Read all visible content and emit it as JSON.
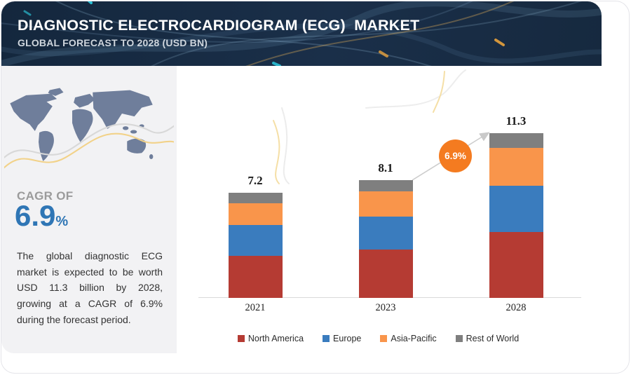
{
  "header": {
    "title": "DIAGNOSTIC ELECTROCARDIOGRAM (ECG)  MARKET",
    "subtitle": "GLOBAL FORECAST TO 2028 (USD BN)",
    "bg_color": "#16293f"
  },
  "sidebar": {
    "cagr_label": "CAGR OF",
    "cagr_value": "6.9",
    "cagr_percent_sign": "%",
    "cagr_color": "#2f76b5",
    "description": "The global diagnostic ECG market is expected to be worth USD 11.3 billion by 2028, growing at a CAGR of 6.9% during the forecast period.",
    "map_color": "#6f7e9b"
  },
  "chart_data": {
    "type": "bar",
    "stacked": true,
    "title": "",
    "xlabel": "",
    "ylabel": "",
    "unit": "USD BN",
    "grid": false,
    "legend_position": "bottom",
    "categories": [
      "2021",
      "2023",
      "2028"
    ],
    "series": [
      {
        "name": "North America",
        "color": "#b53b33",
        "values": [
          2.9,
          3.3,
          4.5
        ]
      },
      {
        "name": "Europe",
        "color": "#3a7cbe",
        "values": [
          2.1,
          2.3,
          3.2
        ]
      },
      {
        "name": "Asia-Pacific",
        "color": "#f9954b",
        "values": [
          1.5,
          1.7,
          2.6
        ]
      },
      {
        "name": "Rest of World",
        "color": "#7f7f7f",
        "values": [
          0.7,
          0.8,
          1.0
        ]
      }
    ],
    "totals": [
      7.2,
      8.1,
      11.3
    ],
    "total_labels": [
      "7.2",
      "8.1",
      "11.3"
    ],
    "growth_badge": "6.9%",
    "growth_badge_color": "#f47b20"
  }
}
